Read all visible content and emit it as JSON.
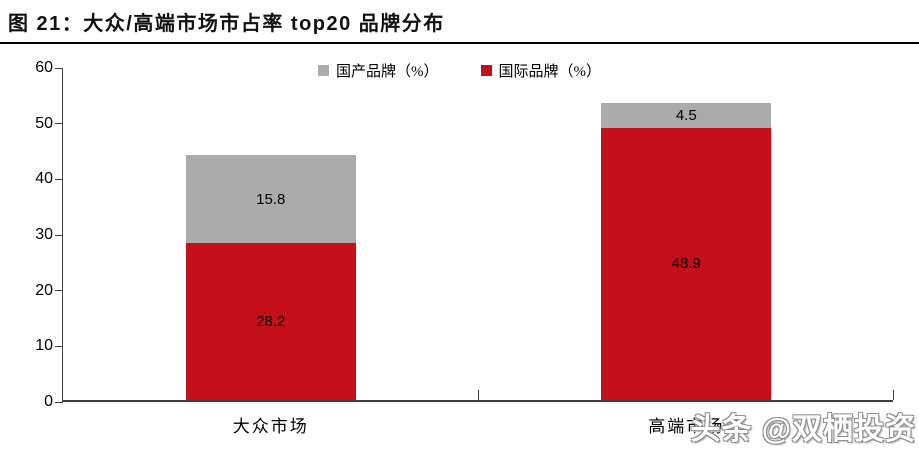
{
  "figure": {
    "title": "图 21：大众/高端市场市占率 top20 品牌分布"
  },
  "watermark": {
    "text": "头条 @双栖投资"
  },
  "chart_data": {
    "type": "bar",
    "subtype": "stacked",
    "title": "图 21：大众/高端市场市占率 top20 品牌分布",
    "categories": [
      "大众市场",
      "高端市场"
    ],
    "series": [
      {
        "name": "国际品牌（%）",
        "color": "#c5101b",
        "values": [
          28.2,
          48.9
        ]
      },
      {
        "name": "国产品牌（%）",
        "color": "#ababab",
        "values": [
          15.8,
          4.5
        ]
      }
    ],
    "legend_order": [
      "国产品牌（%）",
      "国际品牌（%）"
    ],
    "xlabel": "",
    "ylabel": "",
    "ylim": [
      0,
      60
    ],
    "yticks": [
      0,
      10,
      20,
      30,
      40,
      50,
      60
    ],
    "gridlines": false,
    "legend_position": "top-center",
    "value_labels": true,
    "colors": {
      "international": "#c5101b",
      "domestic": "#ababab",
      "axis": "#3f3f3f"
    }
  }
}
